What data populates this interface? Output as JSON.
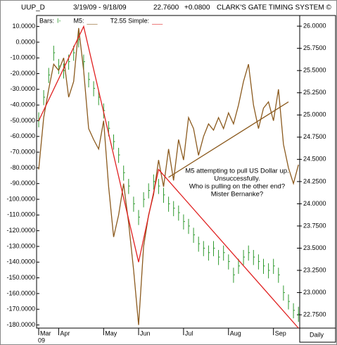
{
  "header": {
    "symbol": "UUP_D",
    "range": "3/19/09 - 9/18/09",
    "last": "22.7600",
    "change": "+0.0800",
    "system": "CLARK'S GATE TIMING SYSTEM ©"
  },
  "chart_data": {
    "type": "combo",
    "legend": [
      {
        "name": "Bars:",
        "swatch": "I-",
        "color": "#2e9a2e"
      },
      {
        "name": "M5:",
        "swatch": "___",
        "color": "#8b5a1e"
      },
      {
        "name": "T2.55 Simple:",
        "swatch": "___",
        "color": "#e02020"
      }
    ],
    "categories": [
      "Mar",
      null,
      null,
      null,
      "Apr",
      null,
      null,
      null,
      null,
      null,
      null,
      null,
      null,
      "May",
      null,
      null,
      null,
      null,
      null,
      null,
      "Jun",
      null,
      null,
      null,
      null,
      null,
      null,
      null,
      null,
      "Jul",
      null,
      null,
      null,
      null,
      null,
      null,
      null,
      null,
      "Aug",
      null,
      null,
      null,
      null,
      null,
      null,
      null,
      null,
      "Sep",
      null,
      null,
      null,
      null,
      null
    ],
    "year_label": "09",
    "x_label": "Daily",
    "bars": {
      "axis": "y2",
      "color": "#2e9a2e",
      "high": [
        25.03,
        25.28,
        25.53,
        25.78,
        25.63,
        25.58,
        25.68,
        25.78,
        25.93,
        25.68,
        25.48,
        25.38,
        25.28,
        25.13,
        24.93,
        24.78,
        24.63,
        24.43,
        24.28,
        24.08,
        23.93,
        24.13,
        24.23,
        24.33,
        24.28,
        24.18,
        24.08,
        24.03,
        23.98,
        23.88,
        23.83,
        23.73,
        23.63,
        23.58,
        23.53,
        23.58,
        23.48,
        23.53,
        23.43,
        23.28,
        23.38,
        23.48,
        23.53,
        23.48,
        23.43,
        23.38,
        23.33,
        23.38,
        23.28,
        23.08,
        22.98,
        22.88,
        22.84
      ],
      "low": [
        24.86,
        25.11,
        25.36,
        25.61,
        25.46,
        25.41,
        25.51,
        25.61,
        25.76,
        25.51,
        25.31,
        25.21,
        25.11,
        24.96,
        24.76,
        24.61,
        24.46,
        24.26,
        24.11,
        23.91,
        23.76,
        23.96,
        24.06,
        24.16,
        24.11,
        24.01,
        23.91,
        23.86,
        23.81,
        23.71,
        23.66,
        23.56,
        23.46,
        23.41,
        23.36,
        23.41,
        23.31,
        23.36,
        23.26,
        23.11,
        23.21,
        23.31,
        23.36,
        23.31,
        23.26,
        23.21,
        23.16,
        23.21,
        23.11,
        22.91,
        22.81,
        22.71,
        22.67
      ],
      "close": [
        24.95,
        25.2,
        25.45,
        25.7,
        25.55,
        25.5,
        25.6,
        25.7,
        25.85,
        25.6,
        25.4,
        25.3,
        25.2,
        25.05,
        24.85,
        24.7,
        24.55,
        24.35,
        24.2,
        24.0,
        23.85,
        24.05,
        24.15,
        24.25,
        24.2,
        24.1,
        24.0,
        23.95,
        23.9,
        23.8,
        23.75,
        23.65,
        23.55,
        23.5,
        23.45,
        23.5,
        23.4,
        23.45,
        23.35,
        23.2,
        23.3,
        23.4,
        23.45,
        23.4,
        23.35,
        23.3,
        23.25,
        23.3,
        23.2,
        23.0,
        22.9,
        22.8,
        22.76
      ]
    },
    "m5": {
      "color": "#8b5a1e",
      "values": [
        -81,
        -48,
        -30,
        -14,
        -18,
        -10,
        -35,
        -25,
        9,
        -18,
        -55,
        -62,
        -68,
        -50,
        -92,
        -124,
        -110,
        -90,
        -115,
        -145,
        -180,
        -130,
        -110,
        -97,
        -75,
        -92,
        -68,
        -88,
        -62,
        -75,
        -48,
        -55,
        -72,
        -60,
        -52,
        -56,
        -48,
        -55,
        -45,
        -52,
        -40,
        -25,
        -14,
        -40,
        -55,
        -42,
        -38,
        -50,
        -30,
        -65,
        -80,
        -90,
        -78
      ]
    },
    "trendlines": [
      {
        "color": "#e02020",
        "x": [
          0,
          9,
          20,
          24,
          52
        ],
        "values": [
          -50,
          10,
          -140,
          -81,
          -182
        ]
      },
      {
        "color": "#8b5a1e",
        "x": [
          26,
          50
        ],
        "values": [
          -86,
          -38
        ]
      }
    ],
    "annotation": [
      "M5 attempting to pull US Dollar up.",
      "Unsuccessfully.",
      "Who is pulling on the other end?",
      "Mister Bernanke?"
    ],
    "ylim": [
      -182,
      17
    ],
    "yticks": [
      {
        "value": 10,
        "label": "10.0000"
      },
      {
        "value": 0,
        "label": "0.0000"
      },
      {
        "value": -10,
        "label": "-10.0000"
      },
      {
        "value": -20,
        "label": "-20.0000"
      },
      {
        "value": -30,
        "label": "-30.0000"
      },
      {
        "value": -40,
        "label": "-40.0000"
      },
      {
        "value": -50,
        "label": "-50.0000"
      },
      {
        "value": -60,
        "label": "-60.0000"
      },
      {
        "value": -70,
        "label": "-70.0000"
      },
      {
        "value": -80,
        "label": "-80.0000"
      },
      {
        "value": -90,
        "label": "-90.0000"
      },
      {
        "value": -100,
        "label": "-100.0000"
      },
      {
        "value": -110,
        "label": "-110.0000"
      },
      {
        "value": -120,
        "label": "-120.0000"
      },
      {
        "value": -130,
        "label": "-130.0000"
      },
      {
        "value": -140,
        "label": "-140.0000"
      },
      {
        "value": -150,
        "label": "-150.0000"
      },
      {
        "value": -160,
        "label": "-160.0000"
      },
      {
        "value": -170,
        "label": "-170.0000"
      },
      {
        "value": -180,
        "label": "-180.0000"
      }
    ],
    "y2lim": [
      22.6,
      26.12
    ],
    "y2ticks": [
      {
        "value": 26,
        "label": "26.0000"
      },
      {
        "value": 25.75,
        "label": "25.7500"
      },
      {
        "value": 25.5,
        "label": "25.5000"
      },
      {
        "value": 25.25,
        "label": "25.2500"
      },
      {
        "value": 25,
        "label": "25.0000"
      },
      {
        "value": 24.75,
        "label": "24.7500"
      },
      {
        "value": 24.5,
        "label": "24.5000"
      },
      {
        "value": 24.25,
        "label": "24.2500"
      },
      {
        "value": 24,
        "label": "24.0000"
      },
      {
        "value": 23.75,
        "label": "23.7500"
      },
      {
        "value": 23.5,
        "label": "23.5000"
      },
      {
        "value": 23.25,
        "label": "23.2500"
      },
      {
        "value": 23,
        "label": "23.0000"
      },
      {
        "value": 22.75,
        "label": "22.7500"
      }
    ],
    "grid": false
  }
}
